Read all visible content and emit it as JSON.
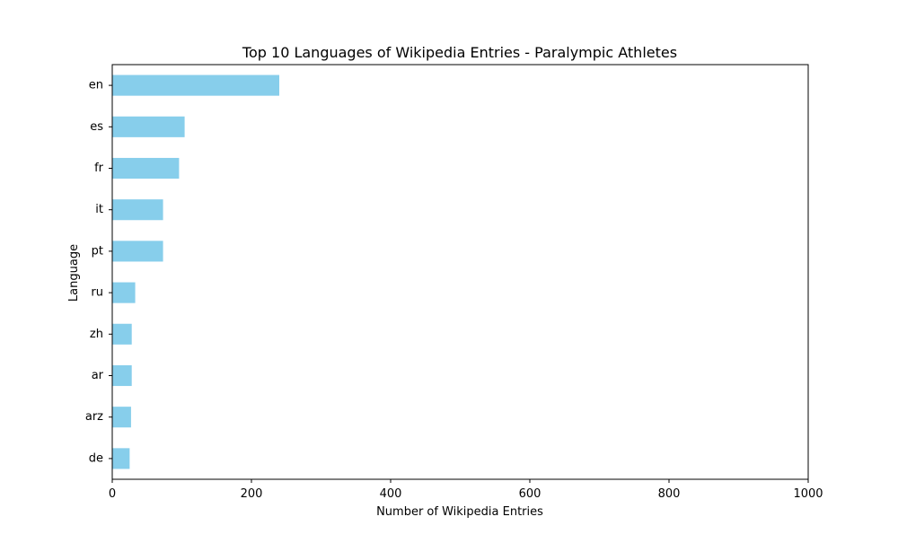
{
  "chart_data": {
    "type": "bar",
    "orientation": "horizontal",
    "title": "Top 10 Languages of Wikipedia Entries - Paralympic Athletes",
    "xlabel": "Number of Wikipedia Entries",
    "ylabel": "Language",
    "categories": [
      "en",
      "es",
      "fr",
      "it",
      "pt",
      "ru",
      "zh",
      "ar",
      "arz",
      "de"
    ],
    "values": [
      240,
      104,
      96,
      73,
      73,
      33,
      28,
      28,
      27,
      25
    ],
    "xlim": [
      0,
      1000
    ],
    "xticks": [
      0,
      200,
      400,
      600,
      800,
      1000
    ],
    "bar_color": "#87CEEB",
    "grid": false,
    "legend": "none"
  }
}
